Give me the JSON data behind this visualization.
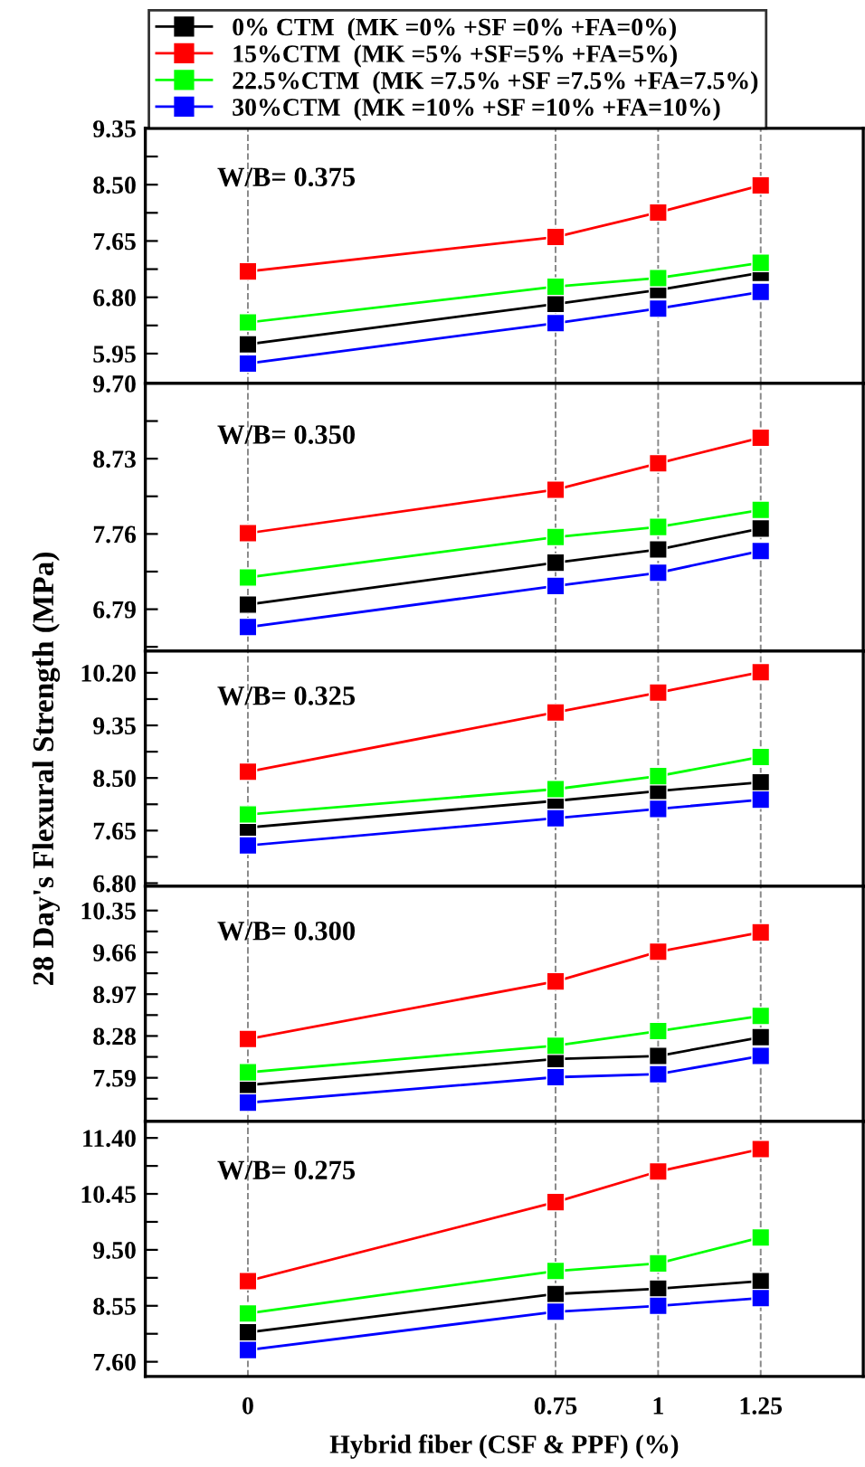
{
  "chart_data": [
    {
      "type": "line",
      "annotations": [
        "W/B= 0.375"
      ],
      "x": [
        0,
        0.75,
        1,
        1.25
      ],
      "xlim": [
        -0.25,
        1.5
      ],
      "xticks": [
        0,
        0.75,
        1,
        1.25
      ],
      "ylim": [
        5.5,
        9.35
      ],
      "yticks": [
        5.95,
        {
          "value": 6.375,
          "label": null
        },
        {
          "value": 6.8,
          "label": "6.80"
        },
        {
          "value": 7.225,
          "label": null
        },
        7.65,
        {
          "value": 8.075,
          "label": null
        },
        {
          "value": 8.5,
          "label": "8.50"
        },
        {
          "value": 8.925,
          "label": null
        },
        9.35
      ],
      "tick_labels": "y",
      "grid": "x",
      "marker": "square",
      "legend": "top",
      "series": [
        {
          "name": "0% CTM  (MK =0% +SF =0% +FA=0%)",
          "color": "#000000",
          "values": [
            6.09,
            6.7,
            6.91,
            7.17
          ]
        },
        {
          "name": "15%CTM  (MK =5% +SF=5% +FA=5%)",
          "color": "#ff0000",
          "values": [
            7.19,
            7.71,
            8.08,
            8.49
          ]
        },
        {
          "name": "22.5%CTM  (MK =7.5% +SF =7.5% +FA=7.5%)",
          "color": "#00ff00",
          "values": [
            6.42,
            6.96,
            7.09,
            7.32
          ]
        },
        {
          "name": "30%CTM  (MK =10% +SF =10% +FA=10%)",
          "color": "#0000ff",
          "values": [
            5.8,
            6.41,
            6.63,
            6.88
          ]
        }
      ]
    },
    {
      "type": "line",
      "annotations": [
        "W/B= 0.350"
      ],
      "x": [
        0,
        0.75,
        1,
        1.25
      ],
      "xlim": [
        -0.25,
        1.5
      ],
      "xticks": [
        0,
        0.75,
        1,
        1.25
      ],
      "ylim": [
        6.25,
        9.7
      ],
      "yticks": [
        {
          "value": 6.305,
          "label": null
        },
        6.79,
        {
          "value": 7.275,
          "label": null
        },
        7.76,
        {
          "value": 8.245,
          "label": null
        },
        8.73,
        {
          "value": 9.215,
          "label": null
        },
        {
          "value": 9.7,
          "label": "9.70"
        }
      ],
      "tick_labels": "y",
      "grid": "x",
      "marker": "square",
      "series": [
        {
          "color": "#000000",
          "values": [
            6.85,
            7.39,
            7.56,
            7.83
          ]
        },
        {
          "color": "#ff0000",
          "values": [
            7.77,
            8.33,
            8.67,
            9.0
          ]
        },
        {
          "color": "#00ff00",
          "values": [
            7.2,
            7.72,
            7.85,
            8.07
          ]
        },
        {
          "color": "#0000ff",
          "values": [
            6.56,
            7.09,
            7.26,
            7.54
          ]
        }
      ]
    },
    {
      "type": "line",
      "annotations": [
        "W/B= 0.325"
      ],
      "ylabel": "28 Day's Flexural Strength (MPa)",
      "x": [
        0,
        0.75,
        1,
        1.25
      ],
      "xlim": [
        -0.25,
        1.5
      ],
      "xticks": [
        0,
        0.75,
        1,
        1.25
      ],
      "ylim": [
        6.75,
        10.55
      ],
      "yticks": [
        {
          "value": 6.8,
          "label": "6.80"
        },
        {
          "value": 7.225,
          "label": null
        },
        7.65,
        {
          "value": 8.075,
          "label": null
        },
        {
          "value": 8.5,
          "label": "8.50"
        },
        {
          "value": 8.925,
          "label": null
        },
        9.35,
        {
          "value": 9.775,
          "label": null
        },
        {
          "value": 10.2,
          "label": "10.20"
        }
      ],
      "tick_labels": "y",
      "grid": "x",
      "marker": "square",
      "series": [
        {
          "color": "#000000",
          "values": [
            7.7,
            8.13,
            8.29,
            8.43
          ]
        },
        {
          "color": "#ff0000",
          "values": [
            8.6,
            9.56,
            9.88,
            10.21
          ]
        },
        {
          "color": "#00ff00",
          "values": [
            7.91,
            8.32,
            8.53,
            8.84
          ]
        },
        {
          "color": "#0000ff",
          "values": [
            7.41,
            7.85,
            8.0,
            8.15
          ]
        }
      ]
    },
    {
      "type": "line",
      "annotations": [
        "W/B= 0.300"
      ],
      "x": [
        0,
        0.75,
        1,
        1.25
      ],
      "xlim": [
        -0.25,
        1.5
      ],
      "xticks": [
        0,
        0.75,
        1,
        1.25
      ],
      "ylim": [
        6.87,
        10.75
      ],
      "yticks": [
        {
          "value": 7.245,
          "label": null
        },
        7.59,
        {
          "value": 7.935,
          "label": null
        },
        8.28,
        {
          "value": 8.625,
          "label": null
        },
        8.97,
        {
          "value": 9.315,
          "label": null
        },
        9.66,
        {
          "value": 10.005,
          "label": null
        },
        10.35
      ],
      "tick_labels": "y",
      "grid": "x",
      "marker": "square",
      "series": [
        {
          "color": "#000000",
          "values": [
            7.47,
            7.9,
            7.95,
            8.26
          ]
        },
        {
          "color": "#ff0000",
          "values": [
            8.23,
            9.18,
            9.67,
            9.99
          ]
        },
        {
          "color": "#00ff00",
          "values": [
            7.68,
            8.12,
            8.36,
            8.61
          ]
        },
        {
          "color": "#0000ff",
          "values": [
            7.18,
            7.6,
            7.65,
            7.95
          ]
        }
      ]
    },
    {
      "type": "line",
      "annotations": [
        "W/B= 0.275"
      ],
      "xlabel": "Hybrid fiber (CSF & PPF) (%)",
      "x": [
        0,
        0.75,
        1,
        1.25
      ],
      "xlim": [
        -0.25,
        1.5
      ],
      "xticks": [
        0,
        0.75,
        1,
        1.25
      ],
      "ylim": [
        7.35,
        11.68
      ],
      "yticks": [
        {
          "value": 7.6,
          "label": "7.60"
        },
        {
          "value": 8.075,
          "label": null
        },
        8.55,
        {
          "value": 9.025,
          "label": null
        },
        {
          "value": 9.5,
          "label": "9.50"
        },
        {
          "value": 9.975,
          "label": null
        },
        10.45,
        {
          "value": 10.925,
          "label": null
        },
        {
          "value": 11.4,
          "label": "11.40"
        }
      ],
      "grid": "x",
      "marker": "square",
      "series": [
        {
          "color": "#000000",
          "values": [
            8.1,
            8.75,
            8.84,
            8.97
          ]
        },
        {
          "color": "#ff0000",
          "values": [
            8.97,
            10.31,
            10.83,
            11.21
          ]
        },
        {
          "color": "#00ff00",
          "values": [
            8.42,
            9.14,
            9.27,
            9.71
          ]
        },
        {
          "color": "#0000ff",
          "values": [
            7.8,
            8.45,
            8.55,
            8.68
          ]
        }
      ]
    }
  ]
}
